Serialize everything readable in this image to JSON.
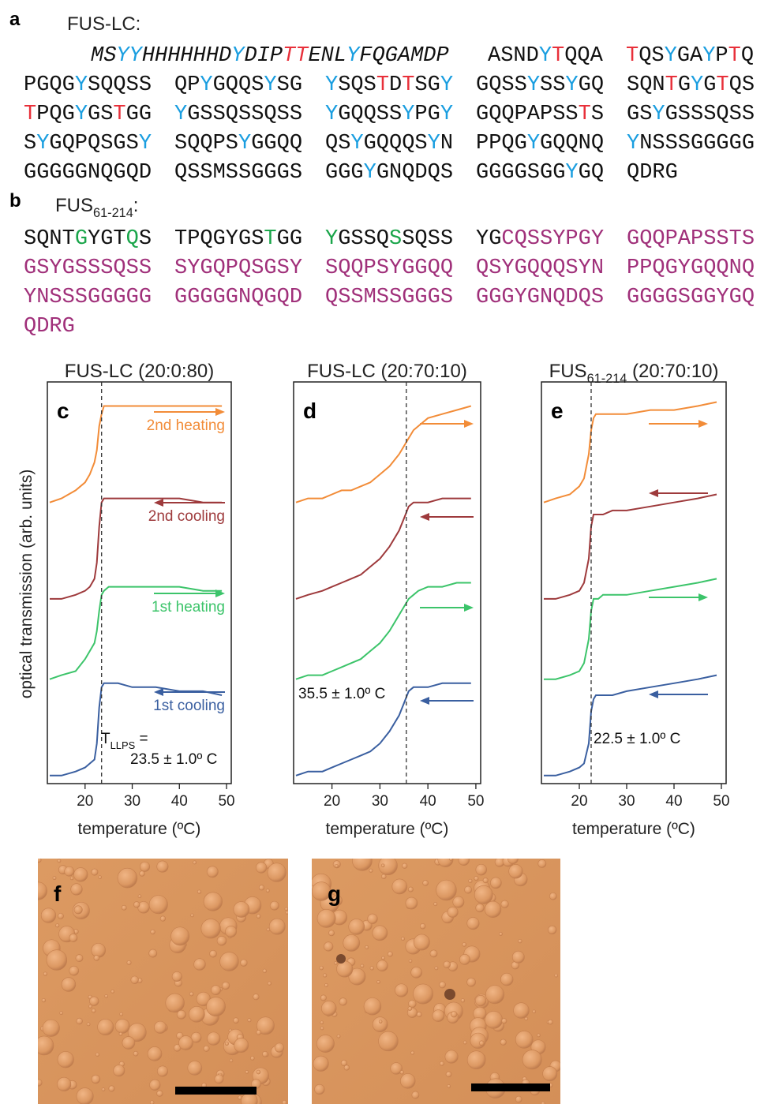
{
  "a": {
    "label": "a",
    "title": "FUS-LC:",
    "lines": [
      {
        "blocks": [
          {
            "italic": true,
            "runs": [
              {
                "text": "MS"
              },
              {
                "text": "YY",
                "color": "#1a9ee0"
              },
              {
                "text": "HHHHHHD"
              },
              {
                "text": "Y",
                "color": "#1a9ee0"
              },
              {
                "text": "DIP"
              },
              {
                "text": "TT",
                "color": "#e8303a"
              },
              {
                "text": "ENL"
              },
              {
                "text": "Y",
                "color": "#1a9ee0"
              },
              {
                "text": "FQGAMDP"
              }
            ]
          },
          {
            "runs": [
              {
                "text": "ASND"
              },
              {
                "text": "Y",
                "color": "#1a9ee0"
              },
              {
                "text": "T",
                "color": "#e8303a"
              },
              {
                "text": "QQA"
              }
            ]
          },
          {
            "runs": [
              {
                "text": "T",
                "color": "#e8303a"
              },
              {
                "text": "QS"
              },
              {
                "text": "Y",
                "color": "#1a9ee0"
              },
              {
                "text": "GA"
              },
              {
                "text": "Y",
                "color": "#1a9ee0"
              },
              {
                "text": "P"
              },
              {
                "text": "T",
                "color": "#e8303a"
              },
              {
                "text": "Q"
              }
            ]
          }
        ]
      },
      {
        "blocks": [
          {
            "runs": [
              {
                "text": "PGQG"
              },
              {
                "text": "Y",
                "color": "#1a9ee0"
              },
              {
                "text": "SQQSS"
              }
            ]
          },
          {
            "runs": [
              {
                "text": "QP"
              },
              {
                "text": "Y",
                "color": "#1a9ee0"
              },
              {
                "text": "GQQS"
              },
              {
                "text": "Y",
                "color": "#1a9ee0"
              },
              {
                "text": "SG"
              }
            ]
          },
          {
            "runs": [
              {
                "text": "Y",
                "color": "#1a9ee0"
              },
              {
                "text": "SQS"
              },
              {
                "text": "T",
                "color": "#e8303a"
              },
              {
                "text": "D"
              },
              {
                "text": "T",
                "color": "#e8303a"
              },
              {
                "text": "SG"
              },
              {
                "text": "Y",
                "color": "#1a9ee0"
              }
            ]
          },
          {
            "runs": [
              {
                "text": "GQSS"
              },
              {
                "text": "Y",
                "color": "#1a9ee0"
              },
              {
                "text": "SS"
              },
              {
                "text": "Y",
                "color": "#1a9ee0"
              },
              {
                "text": "GQ"
              }
            ]
          },
          {
            "runs": [
              {
                "text": "SQN"
              },
              {
                "text": "T",
                "color": "#e8303a"
              },
              {
                "text": "G"
              },
              {
                "text": "Y",
                "color": "#1a9ee0"
              },
              {
                "text": "G"
              },
              {
                "text": "T",
                "color": "#e8303a"
              },
              {
                "text": "QS"
              }
            ]
          }
        ]
      },
      {
        "blocks": [
          {
            "runs": [
              {
                "text": "T",
                "color": "#e8303a"
              },
              {
                "text": "PQG"
              },
              {
                "text": "Y",
                "color": "#1a9ee0"
              },
              {
                "text": "GS"
              },
              {
                "text": "T",
                "color": "#e8303a"
              },
              {
                "text": "GG"
              }
            ]
          },
          {
            "runs": [
              {
                "text": "Y",
                "color": "#1a9ee0"
              },
              {
                "text": "GSSQSSQSS"
              }
            ]
          },
          {
            "runs": [
              {
                "text": "Y",
                "color": "#1a9ee0"
              },
              {
                "text": "GQQSS"
              },
              {
                "text": "Y",
                "color": "#1a9ee0"
              },
              {
                "text": "PG"
              },
              {
                "text": "Y",
                "color": "#1a9ee0"
              }
            ]
          },
          {
            "runs": [
              {
                "text": "GQQPAPSS"
              },
              {
                "text": "T",
                "color": "#e8303a"
              },
              {
                "text": "S"
              }
            ]
          },
          {
            "runs": [
              {
                "text": "GS"
              },
              {
                "text": "Y",
                "color": "#1a9ee0"
              },
              {
                "text": "GSSSQSS"
              }
            ]
          }
        ]
      },
      {
        "blocks": [
          {
            "runs": [
              {
                "text": "S"
              },
              {
                "text": "Y",
                "color": "#1a9ee0"
              },
              {
                "text": "GQPQSGS"
              },
              {
                "text": "Y",
                "color": "#1a9ee0"
              }
            ]
          },
          {
            "runs": [
              {
                "text": "SQQPS"
              },
              {
                "text": "Y",
                "color": "#1a9ee0"
              },
              {
                "text": "GGQQ"
              }
            ]
          },
          {
            "runs": [
              {
                "text": "QS"
              },
              {
                "text": "Y",
                "color": "#1a9ee0"
              },
              {
                "text": "GQQQS"
              },
              {
                "text": "Y",
                "color": "#1a9ee0"
              },
              {
                "text": "N"
              }
            ]
          },
          {
            "runs": [
              {
                "text": "PPQG"
              },
              {
                "text": "Y",
                "color": "#1a9ee0"
              },
              {
                "text": "GQQNQ"
              }
            ]
          },
          {
            "runs": [
              {
                "text": "Y",
                "color": "#1a9ee0"
              },
              {
                "text": "NSSSGGGGG"
              }
            ]
          }
        ]
      },
      {
        "blocks": [
          {
            "runs": [
              {
                "text": "GGGGGNQGQD"
              }
            ]
          },
          {
            "runs": [
              {
                "text": "QSSMSSGGGS"
              }
            ]
          },
          {
            "runs": [
              {
                "text": "GGG"
              },
              {
                "text": "Y",
                "color": "#1a9ee0"
              },
              {
                "text": "GNQDQS"
              }
            ]
          },
          {
            "runs": [
              {
                "text": "GGGGSGG"
              },
              {
                "text": "Y",
                "color": "#1a9ee0"
              },
              {
                "text": "GQ"
              }
            ]
          },
          {
            "runs": [
              {
                "text": "QDRG"
              }
            ]
          }
        ]
      }
    ]
  },
  "b": {
    "label": "b",
    "title": {
      "main": "FUS",
      "sub": "61-214",
      "rest": ":"
    },
    "lines": [
      {
        "blocks": [
          {
            "runs": [
              {
                "text": "SQNT"
              },
              {
                "text": "G",
                "color": "#1aa54a"
              },
              {
                "text": "YGT"
              },
              {
                "text": "Q",
                "color": "#1aa54a"
              },
              {
                "text": "S"
              }
            ]
          },
          {
            "runs": [
              {
                "text": "TPQGYGS"
              },
              {
                "text": "T",
                "color": "#1aa54a"
              },
              {
                "text": "GG"
              }
            ]
          },
          {
            "runs": [
              {
                "text": "Y",
                "color": "#1aa54a"
              },
              {
                "text": "GSSQ"
              },
              {
                "text": "S",
                "color": "#1aa54a"
              },
              {
                "text": "SQSS"
              }
            ]
          },
          {
            "runs": [
              {
                "text": "YG"
              },
              {
                "text": "CQSSYPGY",
                "color": "#a0307a"
              }
            ]
          },
          {
            "runs": [
              {
                "text": "GQQPAPSSTS",
                "color": "#a0307a"
              }
            ]
          }
        ]
      },
      {
        "blocks": [
          {
            "runs": [
              {
                "text": "GSYGSSSQSS",
                "color": "#a0307a"
              }
            ]
          },
          {
            "runs": [
              {
                "text": "SYGQPQSGSY",
                "color": "#a0307a"
              }
            ]
          },
          {
            "runs": [
              {
                "text": "SQQPSYGGQQ",
                "color": "#a0307a"
              }
            ]
          },
          {
            "runs": [
              {
                "text": "QSYGQQQSYN",
                "color": "#a0307a"
              }
            ]
          },
          {
            "runs": [
              {
                "text": "PPQGYGQQNQ",
                "color": "#a0307a"
              }
            ]
          }
        ]
      },
      {
        "blocks": [
          {
            "runs": [
              {
                "text": "YNSSSGGGGG",
                "color": "#a0307a"
              }
            ]
          },
          {
            "runs": [
              {
                "text": "GGGGGNQGQD",
                "color": "#a0307a"
              }
            ]
          },
          {
            "runs": [
              {
                "text": "QSSMSSGGGS",
                "color": "#a0307a"
              }
            ]
          },
          {
            "runs": [
              {
                "text": "GGGYGNQDQS",
                "color": "#a0307a"
              }
            ]
          },
          {
            "runs": [
              {
                "text": "GGGGSGGYGQ",
                "color": "#a0307a"
              }
            ]
          }
        ]
      },
      {
        "blocks": [
          {
            "runs": [
              {
                "text": "QDRG",
                "color": "#a0307a"
              }
            ]
          }
        ]
      }
    ]
  },
  "chart_data": [
    {
      "type": "line",
      "label": "c",
      "title": {
        "main": "FUS-LC (20:0:80)"
      },
      "x_label": "temperature (ºC)",
      "y_label": "optical transmission (arb. units)",
      "xlim": [
        12,
        51
      ],
      "xticks": [
        20,
        30,
        40,
        50
      ],
      "ylim": [
        0,
        100
      ],
      "x": [
        12.5,
        15,
        18,
        20,
        21,
        22,
        22.5,
        23,
        23.5,
        24,
        25,
        27,
        30,
        35,
        40,
        45,
        49
      ],
      "series": [
        {
          "name": "2nd heating",
          "color": "#f28c38",
          "direction": "right",
          "values": [
            70,
            71,
            73,
            75,
            77,
            80,
            83,
            89,
            92,
            94,
            94,
            94,
            94,
            94,
            94,
            94,
            94
          ]
        },
        {
          "name": "2nd cooling",
          "color": "#9e3a3c",
          "direction": "left",
          "values": [
            46,
            46,
            47,
            48,
            49,
            51,
            55,
            64,
            70,
            71,
            71,
            71,
            71,
            71,
            71,
            70,
            70
          ]
        },
        {
          "name": "1st heating",
          "color": "#3cc46a",
          "direction": "right",
          "values": [
            26,
            27,
            28,
            31,
            33,
            35,
            38,
            43,
            47,
            48,
            49,
            49,
            49,
            49,
            49,
            48,
            48
          ]
        },
        {
          "name": "1st cooling",
          "color": "#3a5fa0",
          "direction": "left",
          "values": [
            2,
            2,
            3,
            4,
            5,
            6,
            10,
            19,
            24,
            25,
            25,
            25,
            24,
            24,
            23,
            23,
            22
          ]
        }
      ],
      "threshold": {
        "value": 23.5,
        "label": "23.5 ± 1.0º C",
        "prefix": {
          "main": "T",
          "sub": "LLPS",
          "rest": " ="
        }
      }
    },
    {
      "type": "line",
      "label": "d",
      "title": {
        "main": "FUS-LC (20:70:10)"
      },
      "x_label": "temperature (ºC)",
      "xlim": [
        12,
        51
      ],
      "xticks": [
        20,
        30,
        40,
        50
      ],
      "ylim": [
        0,
        100
      ],
      "x": [
        12.5,
        15,
        18,
        20,
        22,
        24,
        26,
        28,
        30,
        32,
        34,
        35,
        36,
        37,
        38,
        40,
        43,
        46,
        49
      ],
      "series": [
        {
          "color": "#f28c38",
          "direction": "right",
          "values": [
            70,
            71,
            71,
            72,
            73,
            73,
            74,
            75,
            77,
            79,
            82,
            84,
            86,
            88,
            89,
            91,
            92,
            93,
            94
          ]
        },
        {
          "color": "#9e3a3c",
          "direction": "left",
          "values": [
            46,
            47,
            48,
            49,
            50,
            51,
            52,
            54,
            56,
            59,
            63,
            66,
            69,
            70,
            70,
            70,
            71,
            71,
            71
          ]
        },
        {
          "color": "#3cc46a",
          "direction": "right",
          "values": [
            26,
            27,
            27,
            28,
            29,
            30,
            31,
            33,
            35,
            38,
            42,
            44,
            46,
            47,
            48,
            49,
            49,
            50,
            50
          ]
        },
        {
          "color": "#3a5fa0",
          "direction": "left",
          "values": [
            2,
            3,
            3,
            4,
            5,
            6,
            7,
            8,
            10,
            13,
            17,
            20,
            23,
            24,
            24,
            24,
            25,
            25,
            25
          ]
        }
      ],
      "threshold": {
        "value": 35.5,
        "label": "35.5 ± 1.0º C"
      }
    },
    {
      "type": "line",
      "label": "e",
      "title": {
        "main": "FUS",
        "sub": "61-214",
        "rest": " (20:70:10)"
      },
      "x_label": "temperature (ºC)",
      "xlim": [
        12,
        51
      ],
      "xticks": [
        20,
        30,
        40,
        50
      ],
      "ylim": [
        0,
        100
      ],
      "x": [
        12.5,
        15,
        18,
        20,
        21,
        22,
        22.5,
        23,
        23.5,
        24,
        25,
        27,
        30,
        35,
        40,
        45,
        49
      ],
      "series": [
        {
          "color": "#f28c38",
          "direction": "right",
          "values": [
            70,
            71,
            72,
            74,
            76,
            82,
            88,
            91,
            92,
            92,
            92,
            92,
            92,
            93,
            93,
            94,
            95
          ]
        },
        {
          "color": "#9e3a3c",
          "direction": "left",
          "values": [
            46,
            46,
            47,
            48,
            50,
            56,
            64,
            67,
            67,
            67,
            67,
            68,
            68,
            69,
            70,
            71,
            72
          ]
        },
        {
          "color": "#3cc46a",
          "direction": "right",
          "values": [
            26,
            26,
            27,
            28,
            30,
            36,
            43,
            46,
            46,
            46,
            47,
            47,
            47,
            48,
            49,
            50,
            51
          ]
        },
        {
          "color": "#3a5fa0",
          "direction": "left",
          "values": [
            2,
            2,
            3,
            4,
            5,
            10,
            18,
            21,
            22,
            22,
            22,
            22,
            23,
            24,
            25,
            26,
            27
          ]
        }
      ],
      "threshold": {
        "value": 22.5,
        "label": "22.5 ± 1.0º C"
      }
    }
  ],
  "images": [
    {
      "label": "f"
    },
    {
      "label": "g"
    }
  ]
}
